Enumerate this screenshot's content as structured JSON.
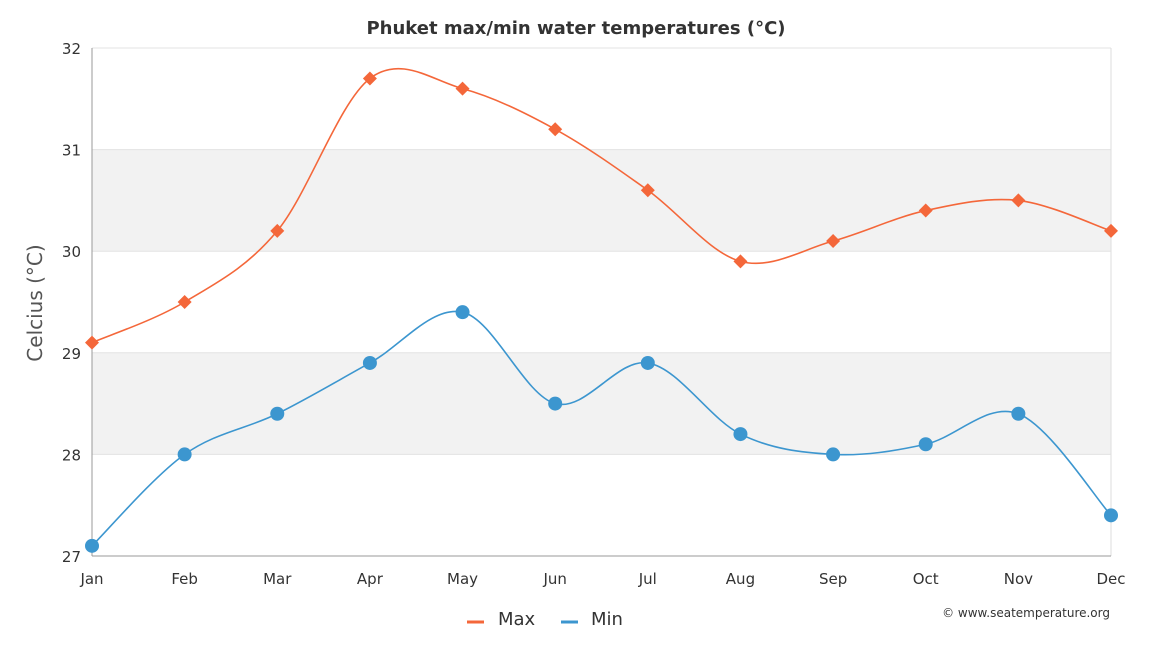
{
  "chart_data": {
    "type": "line",
    "title": "Phuket max/min water temperatures (°C)",
    "ylabel": "Celcius (°C)",
    "xlabel": "",
    "categories": [
      "Jan",
      "Feb",
      "Mar",
      "Apr",
      "May",
      "Jun",
      "Jul",
      "Aug",
      "Sep",
      "Oct",
      "Nov",
      "Dec"
    ],
    "ylim": [
      27,
      32
    ],
    "yticks": [
      "27",
      "28",
      "29",
      "30",
      "31",
      "32"
    ],
    "series": [
      {
        "name": "Max",
        "color": "#f4673a",
        "marker": "diamond",
        "values": [
          29.1,
          29.5,
          30.2,
          31.7,
          31.6,
          31.2,
          30.6,
          29.9,
          30.1,
          30.4,
          30.5,
          30.2
        ]
      },
      {
        "name": "Min",
        "color": "#3c96cf",
        "marker": "circle",
        "values": [
          27.1,
          28.0,
          28.4,
          28.9,
          29.4,
          28.5,
          28.9,
          28.2,
          28.0,
          28.1,
          28.4,
          27.4
        ]
      }
    ],
    "grid": "alternating horizontal bands",
    "legend_position": "bottom-center",
    "credit": "© www.seatemperature.org"
  }
}
